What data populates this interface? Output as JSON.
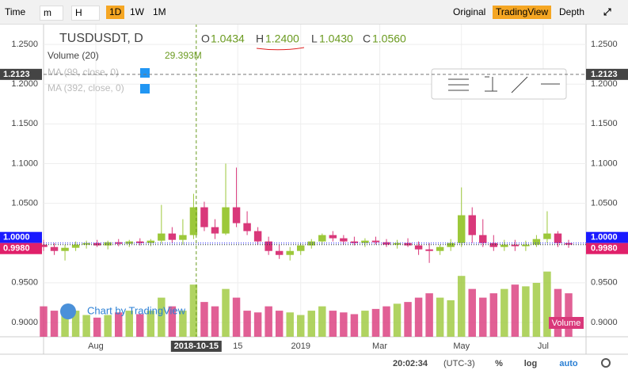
{
  "toolbar": {
    "time": "Time",
    "buttons": [
      "m",
      "H",
      "1D",
      "1W",
      "1M"
    ],
    "views": [
      "Original",
      "TradingView",
      "Depth"
    ]
  },
  "chart_data": {
    "type": "candlestick",
    "symbol": "TUSDUSDT, D",
    "legend": {
      "o": {
        "key": "O",
        "value": 1.0434
      },
      "h": {
        "key": "H",
        "value": {
          "value": 1.24,
          "label": "1.2400"
        }
      },
      "l": {
        "key": "L",
        "value": {
          "value": 1.043,
          "label": "1.0430"
        }
      },
      "c": {
        "key": "C",
        "value": {
          "value": 1.056,
          "label": "1.0560"
        }
      },
      "volume": "Volume (20)",
      "volume_value": {
        "value": 29.393,
        "label": "29.393M"
      },
      "ma1": "MA (99, close, 0)",
      "ma2": "MA (392, close, 0)"
    },
    "x": [
      0,
      8,
      16,
      24,
      32,
      40,
      48,
      56,
      64,
      72,
      80,
      88,
      96,
      104,
      112,
      120,
      128,
      136,
      144,
      152,
      160,
      168,
      176,
      184,
      192,
      200,
      208,
      216,
      224,
      232,
      240,
      248,
      256,
      264,
      272,
      280,
      288,
      296,
      304,
      312,
      320,
      328,
      336,
      344,
      352,
      360,
      368,
      376,
      384,
      392
    ],
    "open": [
      0.998,
      0.995,
      0.99,
      0.994,
      0.998,
      1.0,
      0.997,
      1.001,
      0.999,
      1.002,
      1.0,
      1.003,
      1.012,
      1.004,
      1.01,
      1.045,
      1.02,
      1.012,
      1.045,
      1.025,
      1.015,
      1.002,
      0.99,
      0.985,
      0.99,
      0.997,
      1.002,
      1.01,
      1.006,
      1.002,
      1.0,
      1.003,
      1.001,
      0.998,
      1.0,
      0.997,
      0.992,
      0.99,
      0.995,
      1.0,
      1.035,
      1.01,
      1.0,
      0.995,
      0.998,
      0.996,
      0.998,
      1.005,
      1.012,
      1.0
    ],
    "high": [
      1.004,
      1.0,
      0.998,
      1.002,
      1.003,
      1.004,
      1.003,
      1.005,
      1.004,
      1.006,
      1.005,
      1.048,
      1.02,
      1.03,
      1.062,
      1.052,
      1.03,
      1.1,
      1.095,
      1.04,
      1.02,
      1.008,
      0.998,
      0.995,
      1.0,
      1.005,
      1.012,
      1.015,
      1.01,
      1.008,
      1.006,
      1.008,
      1.005,
      1.004,
      1.006,
      1.002,
      1.0,
      0.998,
      1.005,
      1.07,
      1.045,
      1.03,
      1.01,
      1.004,
      1.004,
      1.003,
      1.01,
      1.04,
      1.015,
      1.004
    ],
    "low": [
      0.99,
      0.985,
      0.978,
      0.99,
      0.993,
      0.995,
      0.992,
      0.996,
      0.995,
      0.997,
      0.996,
      0.999,
      1.0,
      0.998,
      1.005,
      1.015,
      1.005,
      1.01,
      1.02,
      1.01,
      0.998,
      0.985,
      0.98,
      0.978,
      0.985,
      0.993,
      0.998,
      1.002,
      0.998,
      0.997,
      0.995,
      0.998,
      0.995,
      0.993,
      0.995,
      0.985,
      0.975,
      0.985,
      0.99,
      0.995,
      1.0,
      0.995,
      0.99,
      0.99,
      0.99,
      0.99,
      0.995,
      1.0,
      0.995,
      0.994
    ],
    "close": [
      0.995,
      0.99,
      0.994,
      0.998,
      1.0,
      0.997,
      1.001,
      0.999,
      1.002,
      1.0,
      1.003,
      1.012,
      1.004,
      1.01,
      1.045,
      1.02,
      1.012,
      1.045,
      1.025,
      1.015,
      1.002,
      0.99,
      0.985,
      0.99,
      0.997,
      1.002,
      1.01,
      1.006,
      1.002,
      1.0,
      1.003,
      1.001,
      0.998,
      1.0,
      0.997,
      0.992,
      0.99,
      0.995,
      1.0,
      1.035,
      1.01,
      1.0,
      0.995,
      0.998,
      0.996,
      0.998,
      1.005,
      1.012,
      1.0,
      0.998
    ],
    "volume": [
      35,
      30,
      28,
      30,
      25,
      22,
      25,
      28,
      30,
      26,
      30,
      45,
      35,
      30,
      60,
      40,
      35,
      55,
      45,
      30,
      28,
      35,
      30,
      28,
      25,
      30,
      35,
      30,
      28,
      26,
      30,
      32,
      35,
      38,
      40,
      45,
      50,
      45,
      42,
      70,
      55,
      45,
      50,
      55,
      60,
      58,
      62,
      75,
      55,
      50
    ],
    "up_color": "#9cc83a",
    "down_color": "#d9387a",
    "xlim": [
      0,
      405
    ],
    "ylim": [
      0.882,
      1.276
    ],
    "y2lim": [
      0,
      360
    ],
    "xticks": [
      {
        "value": 39,
        "label": "Aug"
      },
      {
        "value": 145,
        "label": "15"
      },
      {
        "value": 192,
        "label": "2019"
      },
      {
        "value": 251,
        "label": "Mar"
      },
      {
        "value": 312,
        "label": "May"
      },
      {
        "value": 373,
        "label": "Jul"
      }
    ],
    "yticks": [
      {
        "value": 0.9,
        "label": "0.9000"
      },
      {
        "value": 0.95,
        "label": "0.9500"
      },
      {
        "value": 1.05,
        "label": "1.0500"
      },
      {
        "value": 1.1,
        "label": "1.1000"
      },
      {
        "value": 1.15,
        "label": "1.1500"
      },
      {
        "value": 1.2,
        "label": "1.2000"
      },
      {
        "value": 1.25,
        "label": "1.2500"
      }
    ],
    "crosshair": {
      "x": 114,
      "x_label": "2018-10-15",
      "y": 1.2123
    },
    "reference": {
      "value": 1,
      "label": "1.0000"
    },
    "last_price": {
      "value": 0.998,
      "label": "0.9980"
    },
    "watermark": "Chart by TradingView",
    "volume_tag": "Volume"
  },
  "status": {
    "time": "20:02:34",
    "zone": "(UTC-3)",
    "percent": "%",
    "log": "log",
    "auto": "auto"
  }
}
